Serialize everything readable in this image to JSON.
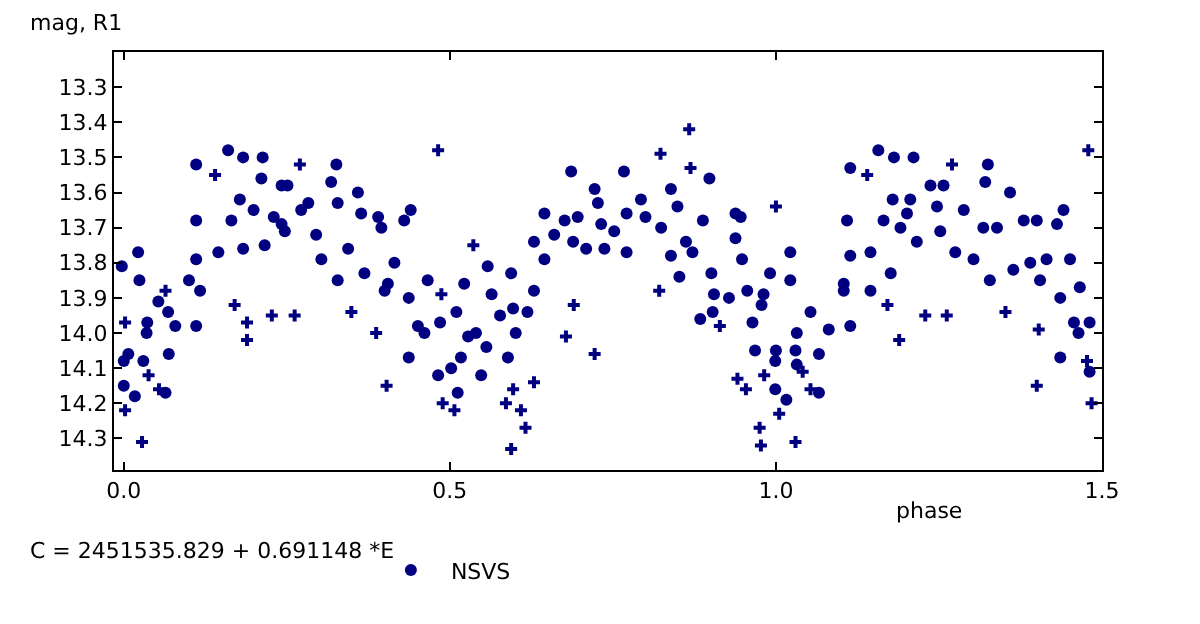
{
  "chart_data": {
    "type": "scatter",
    "xlabel": "phase",
    "ylabel": "mag, R1",
    "legend": "bottom",
    "annotations": [
      "C = 2451535.829 + 0.691148 *E"
    ],
    "xlim": [
      -0.015,
      1.5
    ],
    "ylim": [
      14.39,
      13.2
    ],
    "xticks": [
      {
        "value": 0,
        "label": "0.0"
      },
      0.5,
      {
        "value": 1,
        "label": "1.0"
      },
      1.5
    ],
    "yticks": [
      13.3,
      13.4,
      13.5,
      13.6,
      13.7,
      13.8,
      13.9,
      {
        "value": 14,
        "label": "14.0"
      },
      14.1,
      14.2,
      14.3
    ],
    "series": [
      {
        "name": "NSVS",
        "color": "#000080",
        "marker": "circle",
        "x": [
          -0.003,
          0.0,
          0.0,
          0.007,
          0.017,
          0.022,
          0.024,
          0.03,
          0.036,
          0.035,
          0.053,
          0.068,
          0.069,
          0.064,
          0.079,
          0.1,
          0.111,
          0.111,
          0.111,
          0.111,
          0.117,
          0.145,
          0.16,
          0.165,
          0.178,
          0.183,
          0.183,
          0.199,
          0.211,
          0.213,
          0.216,
          0.23,
          0.242,
          0.242,
          0.247,
          0.251,
          0.272,
          0.283,
          0.295,
          0.303,
          0.318,
          0.326,
          0.328,
          0.328,
          0.344,
          0.359,
          0.364,
          0.369,
          0.39,
          0.395,
          0.4,
          0.405,
          0.415,
          0.43,
          0.437,
          0.437,
          0.44,
          0.451,
          0.461,
          0.466,
          0.482,
          0.485,
          0.502,
          0.51,
          0.512,
          0.517,
          0.522,
          0.528,
          0.54,
          0.548,
          0.556,
          0.558,
          0.564,
          0.577,
          0.589,
          0.594,
          0.597,
          0.601,
          0.619,
          0.629,
          0.629,
          0.645,
          0.645,
          0.66,
          0.676,
          0.686,
          0.689,
          0.696,
          0.709,
          0.722,
          0.727,
          0.732,
          0.737,
          0.752,
          0.767,
          0.771,
          0.771,
          0.793,
          0.8,
          0.824,
          0.839,
          0.839,
          0.849,
          0.852,
          0.862,
          0.872,
          0.884,
          0.888,
          0.898,
          0.901,
          0.905,
          0.903,
          0.928,
          0.938,
          0.938,
          0.946,
          0.948,
          0.956,
          0.964,
          0.968,
          0.978,
          0.981,
          0.991,
          0.999,
          1.0,
          0.999,
          1.016,
          1.022,
          1.022,
          1.03,
          1.032,
          1.032,
          1.053,
          1.066,
          1.066,
          1.081,
          1.104,
          1.104,
          1.109,
          1.114,
          1.114,
          1.114,
          1.145,
          1.145,
          1.157,
          1.165,
          1.176,
          1.179,
          1.181,
          1.191,
          1.201,
          1.206,
          1.211,
          1.216,
          1.237,
          1.247,
          1.252,
          1.257,
          1.275,
          1.288,
          1.303,
          1.318,
          1.321,
          1.325,
          1.328,
          1.339,
          1.359,
          1.364,
          1.38,
          1.39,
          1.4,
          1.405,
          1.415,
          1.431,
          1.436,
          1.436,
          1.441,
          1.451,
          1.457,
          1.464,
          1.466,
          1.481,
          1.481
        ],
        "values": [
          13.81,
          14.08,
          14.15,
          14.06,
          14.18,
          13.77,
          13.85,
          14.08,
          13.97,
          14.0,
          13.91,
          13.94,
          14.06,
          14.17,
          13.98,
          13.85,
          13.68,
          13.52,
          13.79,
          13.98,
          13.88,
          13.77,
          13.48,
          13.68,
          13.62,
          13.76,
          13.5,
          13.65,
          13.56,
          13.5,
          13.75,
          13.67,
          13.58,
          13.69,
          13.71,
          13.58,
          13.65,
          13.63,
          13.72,
          13.79,
          13.57,
          13.52,
          13.63,
          13.85,
          13.76,
          13.6,
          13.66,
          13.83,
          13.67,
          13.7,
          13.88,
          13.86,
          13.8,
          13.68,
          13.9,
          14.07,
          13.65,
          13.98,
          14.0,
          13.85,
          14.12,
          13.97,
          14.1,
          13.94,
          14.17,
          14.07,
          13.86,
          14.01,
          14.0,
          14.12,
          14.04,
          13.81,
          13.89,
          13.95,
          14.07,
          13.83,
          13.93,
          14.0,
          13.94,
          13.88,
          13.74,
          13.66,
          13.79,
          13.72,
          13.68,
          13.54,
          13.74,
          13.67,
          13.76,
          13.59,
          13.63,
          13.69,
          13.76,
          13.71,
          13.54,
          13.66,
          13.77,
          13.62,
          13.67,
          13.7,
          13.59,
          13.78,
          13.64,
          13.84,
          13.74,
          13.77,
          13.96,
          13.68,
          13.56,
          13.83,
          13.89,
          13.94,
          13.9,
          13.66,
          13.73,
          13.67,
          13.79,
          13.88,
          13.97,
          14.05,
          13.92,
          13.89,
          13.83,
          14.08,
          14.05,
          14.16,
          14.19,
          13.77,
          13.85,
          14.05,
          14.09,
          14.0,
          13.94,
          14.06,
          14.17,
          13.99,
          13.86,
          13.88,
          13.68,
          13.53,
          13.98,
          13.78,
          13.77,
          13.88,
          13.48,
          13.68,
          13.83,
          13.62,
          13.5,
          13.7,
          13.66,
          13.62,
          13.5,
          13.74,
          13.58,
          13.64,
          13.71,
          13.58,
          13.77,
          13.65,
          13.79,
          13.7,
          13.57,
          13.52,
          13.85,
          13.7,
          13.6,
          13.82,
          13.68,
          13.8,
          13.68,
          13.85,
          13.79,
          13.69,
          13.9,
          14.07,
          13.65,
          13.79,
          13.97,
          14.0,
          13.87,
          13.97,
          14.11
        ]
      },
      {
        "color": "#000080",
        "marker": "cross",
        "x": [
          0.002,
          0.002,
          0.028,
          0.038,
          0.064,
          0.054,
          0.14,
          0.17,
          0.189,
          0.189,
          0.227,
          0.262,
          0.27,
          0.349,
          0.387,
          0.403,
          0.487,
          0.482,
          0.489,
          0.507,
          0.536,
          0.586,
          0.597,
          0.594,
          0.609,
          0.616,
          0.629,
          0.678,
          0.69,
          0.722,
          0.867,
          0.823,
          0.869,
          0.821,
          0.914,
          0.941,
          0.954,
          0.975,
          0.977,
          0.982,
          1.0,
          1.005,
          1.03,
          1.041,
          1.053,
          1.14,
          1.171,
          1.189,
          1.229,
          1.262,
          1.27,
          1.352,
          1.4,
          1.403,
          1.479,
          1.484,
          1.477
        ],
        "values": [
          13.97,
          14.22,
          14.31,
          14.12,
          13.88,
          14.16,
          13.55,
          13.92,
          13.97,
          14.02,
          13.95,
          13.95,
          13.52,
          13.94,
          14.0,
          14.15,
          13.89,
          13.48,
          14.2,
          14.22,
          13.75,
          14.2,
          14.16,
          14.33,
          14.22,
          14.27,
          14.14,
          14.01,
          13.92,
          14.06,
          13.42,
          13.49,
          13.53,
          13.88,
          13.98,
          14.13,
          14.16,
          14.27,
          14.32,
          14.12,
          13.64,
          14.23,
          14.31,
          14.11,
          14.16,
          13.55,
          13.92,
          14.02,
          13.95,
          13.95,
          13.52,
          13.94,
          14.15,
          13.99,
          13.48,
          14.2,
          14.08
        ]
      }
    ]
  }
}
